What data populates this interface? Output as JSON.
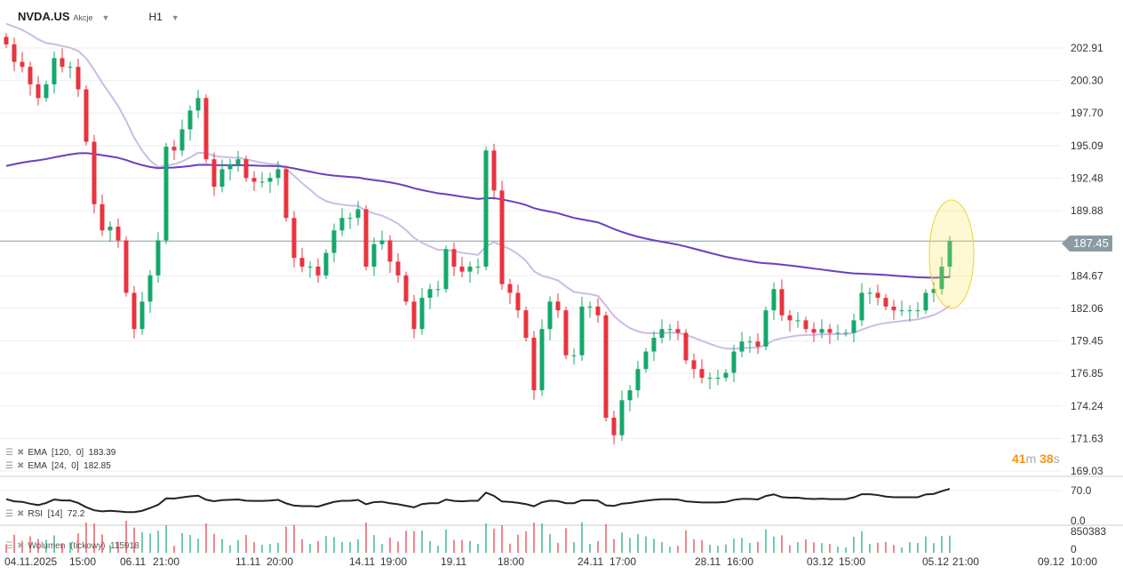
{
  "header": {
    "symbol": "NVDA.US",
    "type": "Akcje",
    "timeframe": "H1"
  },
  "price_axis": [
    "202.91",
    "200.30",
    "197.70",
    "195.09",
    "192.48",
    "189.88",
    "187.45",
    "184.67",
    "182.06",
    "179.45",
    "176.85",
    "174.24",
    "171.63",
    "169.03"
  ],
  "current_price": "187.45",
  "timer": {
    "min": "41",
    "m": "m",
    "sec": "38",
    "s": "s"
  },
  "indicators": {
    "ema120": "EMA  [120,  0]  183.39",
    "ema24": "EMA  [24,  0]  182.85",
    "rsi": "RSI  [14]  72.2",
    "volume": "Wolumen  (tickowy)  115918"
  },
  "rsi_axis": {
    "top": "70.0",
    "bottom": "0.0"
  },
  "volume_axis": {
    "top": "850383",
    "bottom": "0"
  },
  "time_axis": [
    "04.11.2025",
    "15:00",
    "06.11",
    "21:00",
    "11.11",
    "20:00",
    "14.11",
    "19:00",
    "19.11",
    "18:00",
    "24.11",
    "17:00",
    "28.11",
    "16:00",
    "03.12",
    "15:00",
    "05.12",
    "21:00",
    "09.12",
    "10:00"
  ],
  "colors": {
    "up": "#14a86b",
    "down": "#e8343f",
    "ema120": "#6a3fbf",
    "ema24": "#c9bde6"
  },
  "chart_data": {
    "type": "candlestick",
    "ylim": [
      169.03,
      202.91
    ],
    "closes": [
      203.2,
      201.8,
      201.4,
      200.0,
      198.9,
      200.0,
      202.1,
      201.4,
      201.4,
      199.6,
      195.4,
      190.4,
      188.3,
      188.6,
      187.5,
      183.3,
      180.4,
      182.6,
      184.7,
      187.5,
      195.0,
      194.7,
      196.4,
      197.9,
      198.9,
      194.0,
      191.8,
      193.2,
      193.6,
      194.0,
      192.5,
      192.2,
      192.2,
      192.5,
      193.2,
      189.3,
      186.1,
      185.4,
      185.4,
      184.7,
      186.5,
      188.3,
      189.3,
      189.3,
      190.0,
      185.4,
      187.2,
      187.5,
      185.8,
      184.7,
      182.6,
      180.4,
      182.9,
      183.6,
      183.6,
      186.8,
      185.4,
      185.0,
      185.4,
      185.4,
      194.7,
      191.5,
      184.0,
      183.3,
      181.9,
      179.7,
      175.5,
      180.4,
      182.6,
      181.9,
      178.3,
      178.3,
      182.2,
      182.2,
      181.5,
      173.3,
      171.9,
      174.7,
      175.5,
      177.2,
      178.6,
      179.7,
      180.4,
      180.4,
      180.1,
      177.9,
      177.2,
      176.5,
      176.5,
      176.5,
      176.9,
      178.6,
      179.4,
      179.4,
      179.0,
      181.9,
      183.6,
      181.5,
      181.1,
      181.1,
      180.4,
      180.1,
      180.4,
      180.1,
      180.1,
      180.1,
      181.1,
      183.3,
      183.3,
      182.9,
      182.2,
      181.9,
      181.9,
      181.9,
      181.9,
      183.3,
      183.6,
      185.4,
      187.45
    ]
  }
}
